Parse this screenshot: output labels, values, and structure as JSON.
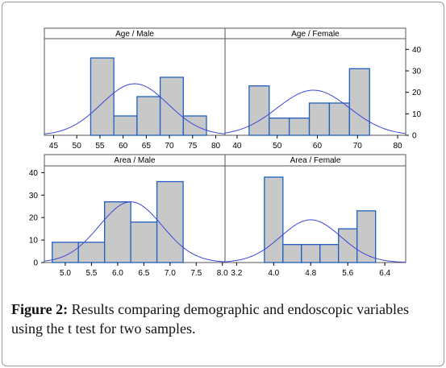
{
  "chart_data": {
    "type": "bar",
    "panels": [
      {
        "title": "Age / Male",
        "xlim": [
          43,
          82
        ],
        "ylim": [
          0,
          45
        ],
        "x_ticks": [
          45,
          50,
          55,
          60,
          65,
          70,
          75,
          80
        ],
        "bins": [
          [
            53,
            58
          ],
          [
            58,
            63
          ],
          [
            63,
            68
          ],
          [
            68,
            73
          ],
          [
            73,
            78
          ]
        ],
        "values": [
          36,
          9,
          18,
          27,
          9
        ],
        "normal_curve": {
          "mean": 62.5,
          "sd": 7.2,
          "peak": 24
        }
      },
      {
        "title": "Age / Female",
        "xlim": [
          37,
          82
        ],
        "ylim": [
          0,
          45
        ],
        "x_ticks": [
          40,
          50,
          60,
          70,
          80
        ],
        "bins": [
          [
            43,
            48
          ],
          [
            48,
            53
          ],
          [
            53,
            58
          ],
          [
            58,
            63
          ],
          [
            63,
            68
          ],
          [
            68,
            73
          ]
        ],
        "values": [
          23,
          8,
          8,
          15,
          15,
          31
        ],
        "normal_curve": {
          "mean": 59,
          "sd": 9,
          "peak": 21
        }
      },
      {
        "title": "Area / Male",
        "xlim": [
          4.6,
          8.05
        ],
        "ylim": [
          0,
          43
        ],
        "x_ticks": [
          "5.0",
          "5.5",
          "6.0",
          "6.5",
          "7.0",
          "7.5",
          "8.0"
        ],
        "bins": [
          [
            4.75,
            5.25
          ],
          [
            5.25,
            5.75
          ],
          [
            5.75,
            6.25
          ],
          [
            6.25,
            6.75
          ],
          [
            6.75,
            7.25
          ]
        ],
        "values": [
          9,
          9,
          27,
          18,
          36
        ],
        "normal_curve": {
          "mean": 6.25,
          "sd": 0.6,
          "peak": 27
        }
      },
      {
        "title": "Area / Female",
        "xlim": [
          2.95,
          6.85
        ],
        "ylim": [
          0,
          43
        ],
        "x_ticks": [
          "3.2",
          "4.0",
          "4.8",
          "5.6",
          "6.4"
        ],
        "bins": [
          [
            3.8,
            4.2
          ],
          [
            4.2,
            4.6
          ],
          [
            4.6,
            5.0
          ],
          [
            5.0,
            5.4
          ],
          [
            5.4,
            5.8
          ],
          [
            5.8,
            6.2
          ]
        ],
        "values": [
          38,
          8,
          8,
          8,
          15,
          23
        ],
        "normal_curve": {
          "mean": 4.8,
          "sd": 0.65,
          "peak": 19
        }
      }
    ],
    "y_ticks_right": [
      0,
      10,
      20,
      30,
      40
    ],
    "y_ticks_left": [
      0,
      10,
      20,
      30,
      40
    ],
    "colors": {
      "bar_fill": "#c8c8c8",
      "bar_stroke": "#1f5fc0",
      "curve": "#3a46d8",
      "frame": "#555555"
    }
  },
  "caption": {
    "label": "Figure 2:",
    "text": " Results comparing demographic and endoscopic variables using the t test for two samples."
  }
}
